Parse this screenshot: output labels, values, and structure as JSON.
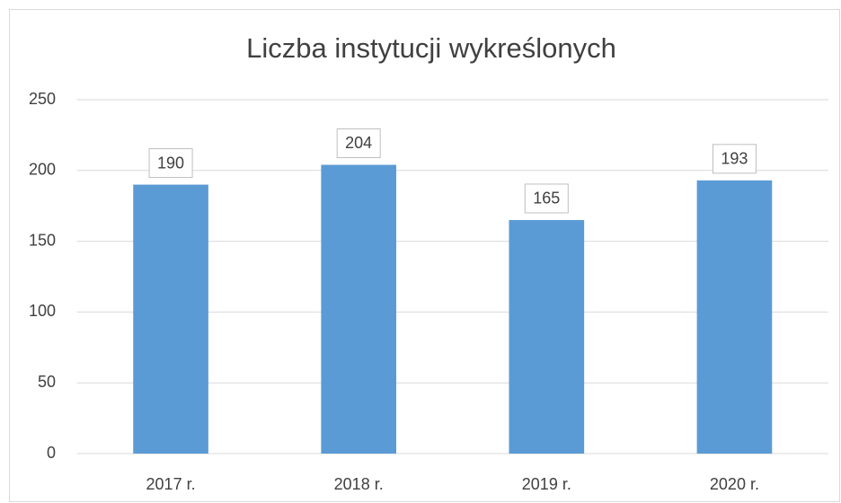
{
  "chart_data": {
    "type": "bar",
    "title": "Liczba instytucji wykreślonych",
    "categories": [
      "2017 r.",
      "2018 r.",
      "2019 r.",
      "2020 r."
    ],
    "values": [
      190,
      204,
      165,
      193
    ],
    "color": "#5b9bd5",
    "ylim": [
      0,
      250
    ],
    "yticks": [
      0,
      50,
      100,
      150,
      200,
      250
    ],
    "grid": true
  }
}
